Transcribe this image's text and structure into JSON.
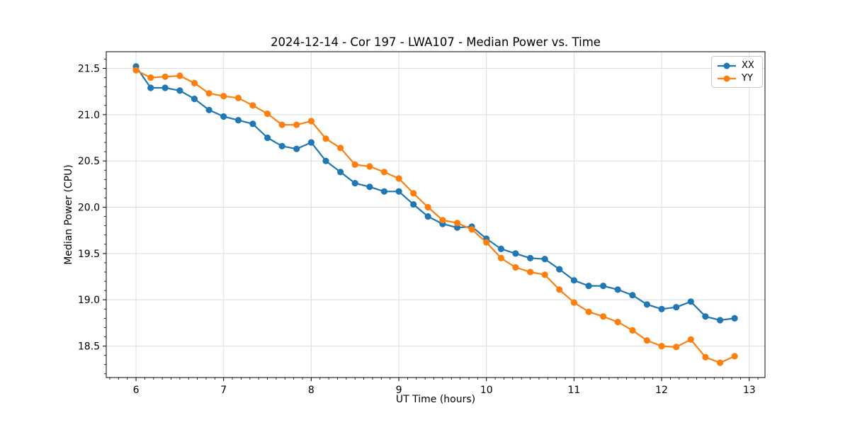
{
  "figure": {
    "background": "#ffffff",
    "spine_color": "#000000",
    "grid_color": "#dddddd",
    "tick_color": "#000000"
  },
  "chart_data": {
    "type": "line",
    "title": "2024-12-14 - Cor 197 - LWA107 - Median Power vs. Time",
    "xlabel": "UT Time (hours)",
    "ylabel": "Median Power (CPU)",
    "grid": true,
    "legend_position": "top-right",
    "xlim": [
      5.66,
      13.18
    ],
    "ylim": [
      18.16,
      21.68
    ],
    "x_major_ticks": [
      6,
      7,
      8,
      9,
      10,
      11,
      12,
      13
    ],
    "y_major_ticks": [
      18.5,
      19.0,
      19.5,
      20.0,
      20.5,
      21.0,
      21.5
    ],
    "minor_tick_step": 0.1,
    "x": [
      6.0,
      6.167,
      6.333,
      6.5,
      6.667,
      6.833,
      7.0,
      7.167,
      7.333,
      7.5,
      7.667,
      7.833,
      8.0,
      8.167,
      8.333,
      8.5,
      8.667,
      8.833,
      9.0,
      9.167,
      9.333,
      9.5,
      9.667,
      9.833,
      10.0,
      10.167,
      10.333,
      10.5,
      10.667,
      10.833,
      11.0,
      11.167,
      11.333,
      11.5,
      11.667,
      11.833,
      12.0,
      12.167,
      12.333,
      12.5,
      12.667,
      12.833
    ],
    "series": [
      {
        "name": "XX",
        "color": "#1f77b4",
        "values": [
          21.52,
          21.29,
          21.29,
          21.26,
          21.17,
          21.05,
          20.98,
          20.94,
          20.9,
          20.75,
          20.66,
          20.63,
          20.7,
          20.5,
          20.38,
          20.26,
          20.22,
          20.17,
          20.17,
          20.03,
          19.9,
          19.82,
          19.78,
          19.79,
          19.66,
          19.55,
          19.5,
          19.45,
          19.44,
          19.33,
          19.21,
          19.15,
          19.15,
          19.11,
          19.05,
          18.95,
          18.9,
          18.92,
          18.98,
          18.82,
          18.78,
          18.8
        ]
      },
      {
        "name": "YY",
        "color": "#ff7f0e",
        "values": [
          21.48,
          21.4,
          21.41,
          21.42,
          21.34,
          21.23,
          21.2,
          21.18,
          21.1,
          21.01,
          20.89,
          20.89,
          20.93,
          20.74,
          20.64,
          20.46,
          20.44,
          20.38,
          20.31,
          20.15,
          20.0,
          19.86,
          19.83,
          19.76,
          19.62,
          19.45,
          19.35,
          19.3,
          19.27,
          19.11,
          18.97,
          18.87,
          18.82,
          18.76,
          18.67,
          18.56,
          18.5,
          18.49,
          18.57,
          18.38,
          18.32,
          18.39
        ]
      }
    ]
  }
}
